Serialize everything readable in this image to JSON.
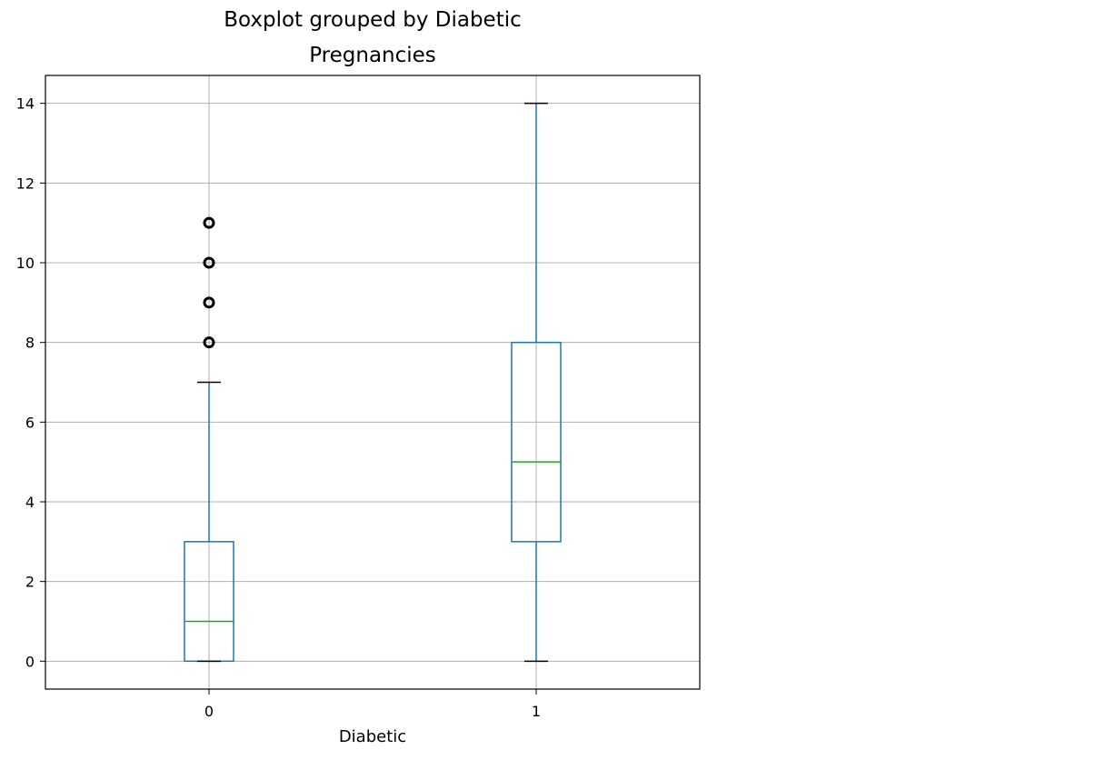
{
  "chart_data": {
    "type": "boxplot",
    "title": "Boxplot grouped by Diabetic",
    "subtitle": "Pregnancies",
    "xlabel": "Diabetic",
    "ylabel": "",
    "ylim": [
      -0.7,
      14.7
    ],
    "yticks": [
      0,
      2,
      4,
      6,
      8,
      10,
      12,
      14
    ],
    "grid": true,
    "categories": [
      "0",
      "1"
    ],
    "boxes": [
      {
        "category": "0",
        "whisker_low": 0,
        "q1": 0,
        "median": 1,
        "q3": 3,
        "whisker_high": 7,
        "outliers": [
          8,
          9,
          10,
          11
        ]
      },
      {
        "category": "1",
        "whisker_low": 0,
        "q1": 3,
        "median": 5,
        "q3": 8,
        "whisker_high": 14,
        "outliers": []
      }
    ],
    "colors": {
      "box": "#1f77b4",
      "median": "#2ca02c",
      "whisker": "#1f77b4",
      "cap": "#000000",
      "flier": "#000000",
      "grid": "#b0b0b0"
    }
  }
}
